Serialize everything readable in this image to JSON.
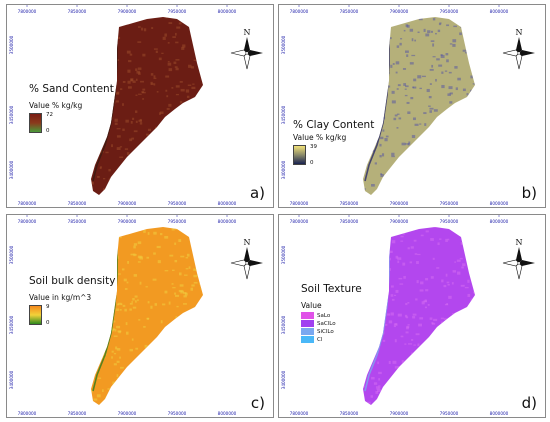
{
  "panels": [
    {
      "id": "a",
      "letter": "a)",
      "legend_title": "% Sand Content",
      "legend_subtitle": "Value % kg/kg",
      "ramp_max": "72",
      "ramp_min": "0",
      "ramp_colors": [
        "#7a1c14",
        "#8a3a1c",
        "#4a9a3a"
      ],
      "map_fill": "#6b1d14",
      "map_texture": "#9a4a2a",
      "north_label": "N"
    },
    {
      "id": "b",
      "letter": "b)",
      "legend_title": "% Clay Content",
      "legend_subtitle": "Value % kg/kg",
      "ramp_max": "39",
      "ramp_min": "0",
      "ramp_colors": [
        "#f2e27a",
        "#8a8a6a",
        "#1a2250"
      ],
      "map_fill": "#b5b07a",
      "map_texture": "#5a5aa0",
      "north_label": "N"
    },
    {
      "id": "c",
      "letter": "c)",
      "legend_title": "Soil bulk density",
      "legend_subtitle": "Value in kg/m^3",
      "ramp_max": "9",
      "ramp_min": "0",
      "ramp_colors": [
        "#f58a1f",
        "#f2d23a",
        "#2e8a1e"
      ],
      "map_fill": "#f29a22",
      "map_texture": "#f0d040",
      "north_label": "N"
    },
    {
      "id": "d",
      "letter": "d)",
      "legend_title": "Soil Texture",
      "legend_subtitle": "Value",
      "classes": [
        {
          "label": "SaLo",
          "color": "#e052e8"
        },
        {
          "label": "SaClLo",
          "color": "#a040f0"
        },
        {
          "label": "SiClLo",
          "color": "#7aa8f0"
        },
        {
          "label": "Cl",
          "color": "#4ab8f8"
        }
      ],
      "map_fill": "#b347ee",
      "map_texture": "#d46cf2",
      "north_label": "N"
    }
  ],
  "ticks": {
    "x_top": [
      "7800000",
      "7850000",
      "7900000",
      "7950000",
      "8000000"
    ],
    "x_bottom": [
      "7800000",
      "7850000",
      "7900000",
      "7950000",
      "8000000"
    ],
    "y_left": [
      "3500000",
      "3450000",
      "3400000"
    ]
  }
}
